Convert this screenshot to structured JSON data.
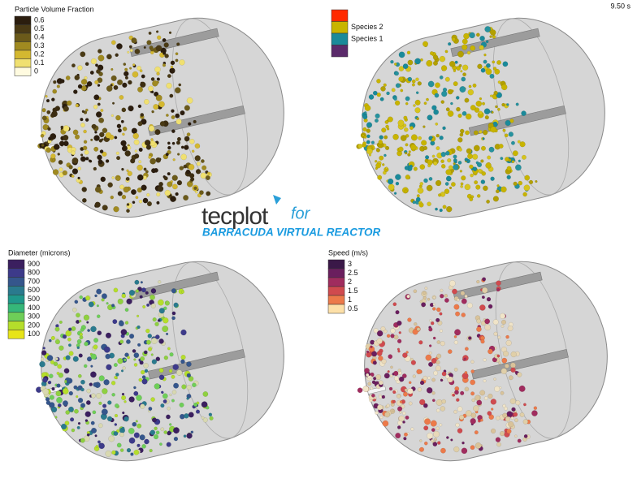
{
  "time_label": "9.50 s",
  "panels": [
    {
      "legend": {
        "title": "Particle Volume Fraction",
        "labels": [
          "0.6",
          "0.5",
          "0.4",
          "0.3",
          "0.2",
          "0.1",
          "0"
        ]
      }
    },
    {
      "legend": {
        "labels": [
          "Species 2",
          "Species 1"
        ]
      }
    },
    {
      "legend": {
        "title": "Diameter (microns)",
        "labels": [
          "900",
          "800",
          "700",
          "600",
          "500",
          "400",
          "300",
          "200",
          "100"
        ]
      }
    },
    {
      "legend": {
        "title": "Speed (m/s)",
        "labels": [
          "3",
          "2.5",
          "2",
          "1.5",
          "1",
          "0.5"
        ]
      }
    }
  ],
  "logo": {
    "brand": "tecplot",
    "suffix": "for",
    "product": "BARRACUDA VIRTUAL REACTOR"
  }
}
